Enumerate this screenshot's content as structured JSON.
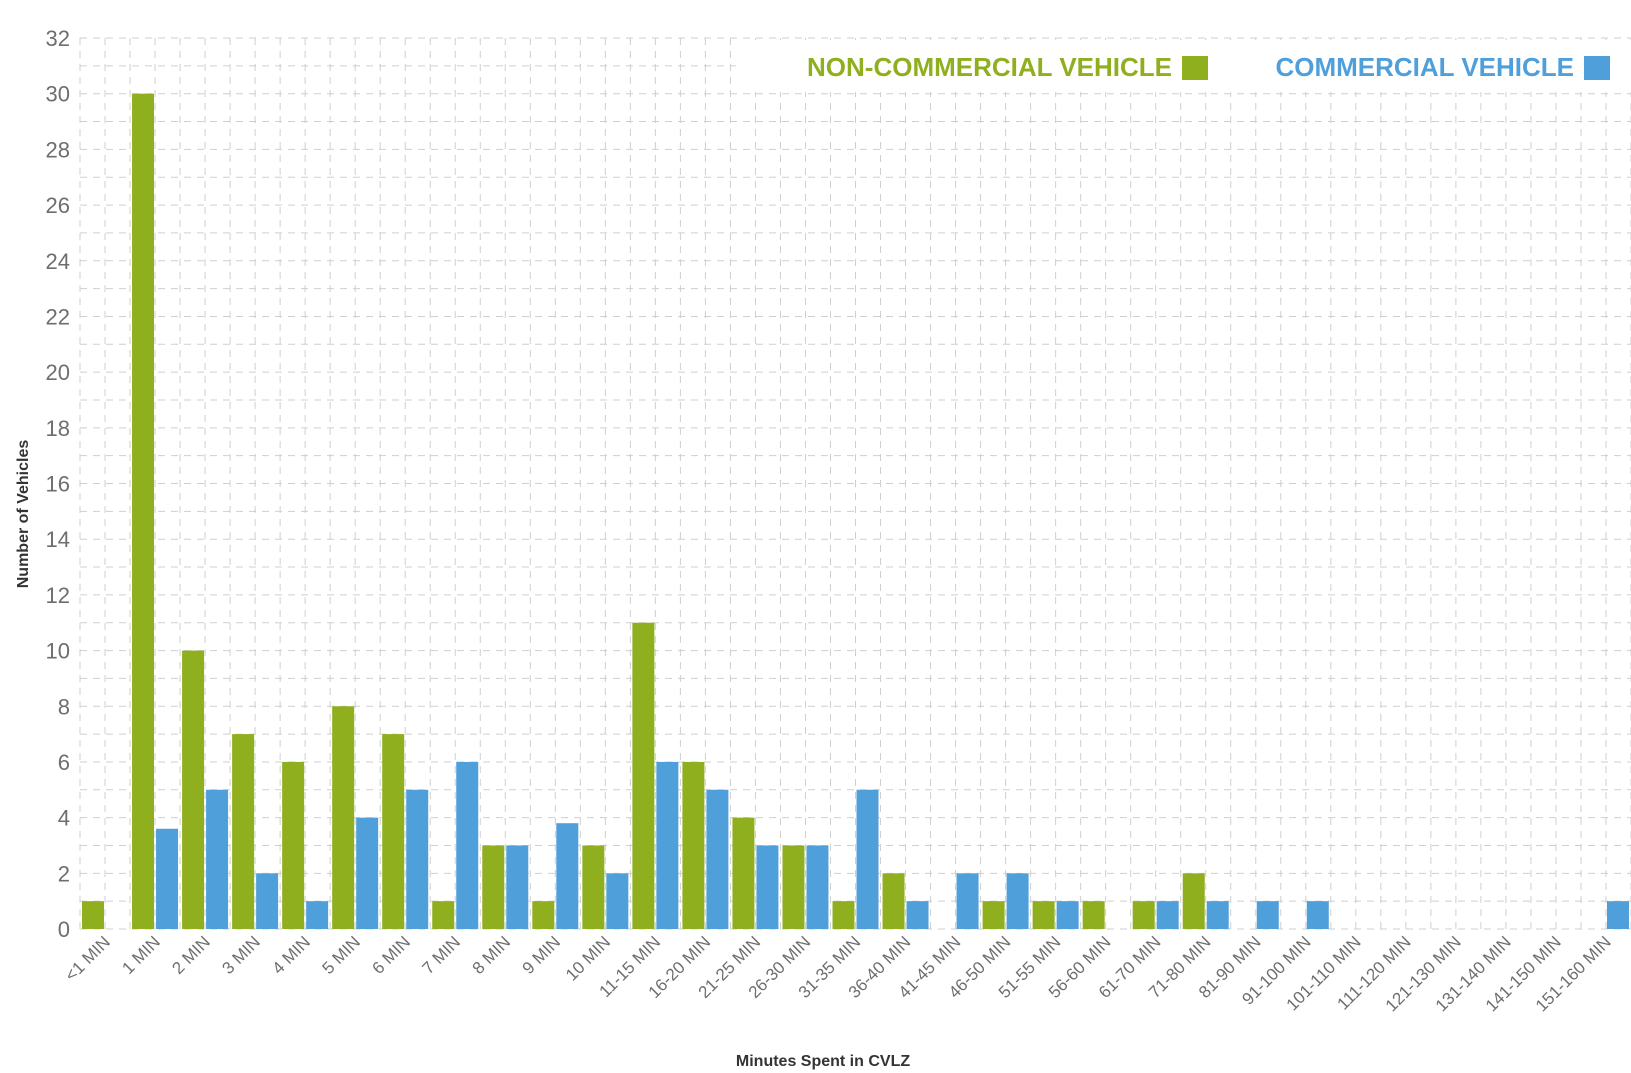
{
  "chart_data": {
    "type": "bar",
    "xlabel": "Minutes Spent in CVLZ",
    "ylabel": "Number of Vehicles",
    "ylim": [
      0,
      32
    ],
    "yticks": [
      0,
      2,
      4,
      6,
      8,
      10,
      12,
      14,
      16,
      18,
      20,
      22,
      24,
      26,
      28,
      30,
      32
    ],
    "grid": true,
    "legend_position": "top-right",
    "categories": [
      "<1 MIN",
      "1 MIN",
      "2 MIN",
      "3 MIN",
      "4 MIN",
      "5 MIN",
      "6 MIN",
      "7 MIN",
      "8 MIN",
      "9 MIN",
      "10 MIN",
      "11-15 MIN",
      "16-20 MIN",
      "21-25 MIN",
      "26-30 MIN",
      "31-35 MIN",
      "36-40 MIN",
      "41-45 MIN",
      "46-50 MIN",
      "51-55 MIN",
      "56-60 MIN",
      "61-70 MIN",
      "71-80 MIN",
      "81-90 MIN",
      "91-100 MIN",
      "101-110 MIN",
      "111-120 MIN",
      "121-130 MIN",
      "131-140 MIN",
      "141-150 MIN",
      "151-160 MIN"
    ],
    "series": [
      {
        "name": "NON-COMMERCIAL VEHICLE",
        "color": "#8faf1e",
        "values": [
          1,
          30,
          10,
          7,
          6,
          8,
          7,
          1,
          3,
          1,
          3,
          11,
          6,
          4,
          3,
          1,
          2,
          0,
          1,
          1,
          1,
          1,
          2,
          0,
          0,
          0,
          0,
          0,
          0,
          0,
          0
        ]
      },
      {
        "name": "COMMERCIAL VEHICLE",
        "color": "#4f9fda",
        "values": [
          0,
          3.6,
          5,
          2,
          1,
          4,
          5,
          6,
          3,
          3.8,
          2,
          6,
          5,
          3,
          3,
          5,
          1,
          2,
          2,
          1,
          0,
          1,
          1,
          1,
          1,
          0,
          0,
          0,
          0,
          0,
          1
        ]
      }
    ]
  }
}
